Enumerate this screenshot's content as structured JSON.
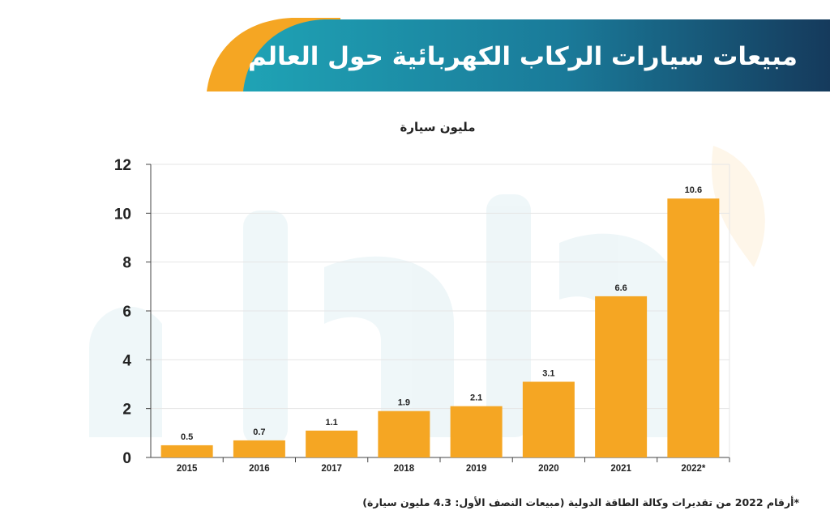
{
  "header": {
    "title": "مبيعات سيارات الركاب الكهربائية حول العالم"
  },
  "chart_data": {
    "type": "bar",
    "unit_label": "مليون سيارة",
    "categories": [
      "2015",
      "2016",
      "2017",
      "2018",
      "2019",
      "2020",
      "2021",
      "2022*"
    ],
    "values": [
      0.5,
      0.7,
      1.1,
      1.9,
      2.1,
      3.1,
      6.6,
      10.6
    ],
    "data_labels": [
      "0.5",
      "0.7",
      "1.1",
      "1.9",
      "2.1",
      "3.1",
      "6.6",
      "10.6"
    ],
    "y_ticks": [
      0,
      2,
      4,
      6,
      8,
      10,
      12
    ],
    "ylim": [
      0,
      12
    ],
    "grid": true,
    "bar_color": "#f5a623"
  },
  "footnote": "*أرقام 2022 من تقديرات وكالة الطاقة الدولية (مبيعات النصف الأول: 4.3 مليون سيارة)",
  "colors": {
    "header_teal": "#1b8aa3",
    "header_dark": "#153a5c",
    "header_orange": "#f5a623"
  }
}
